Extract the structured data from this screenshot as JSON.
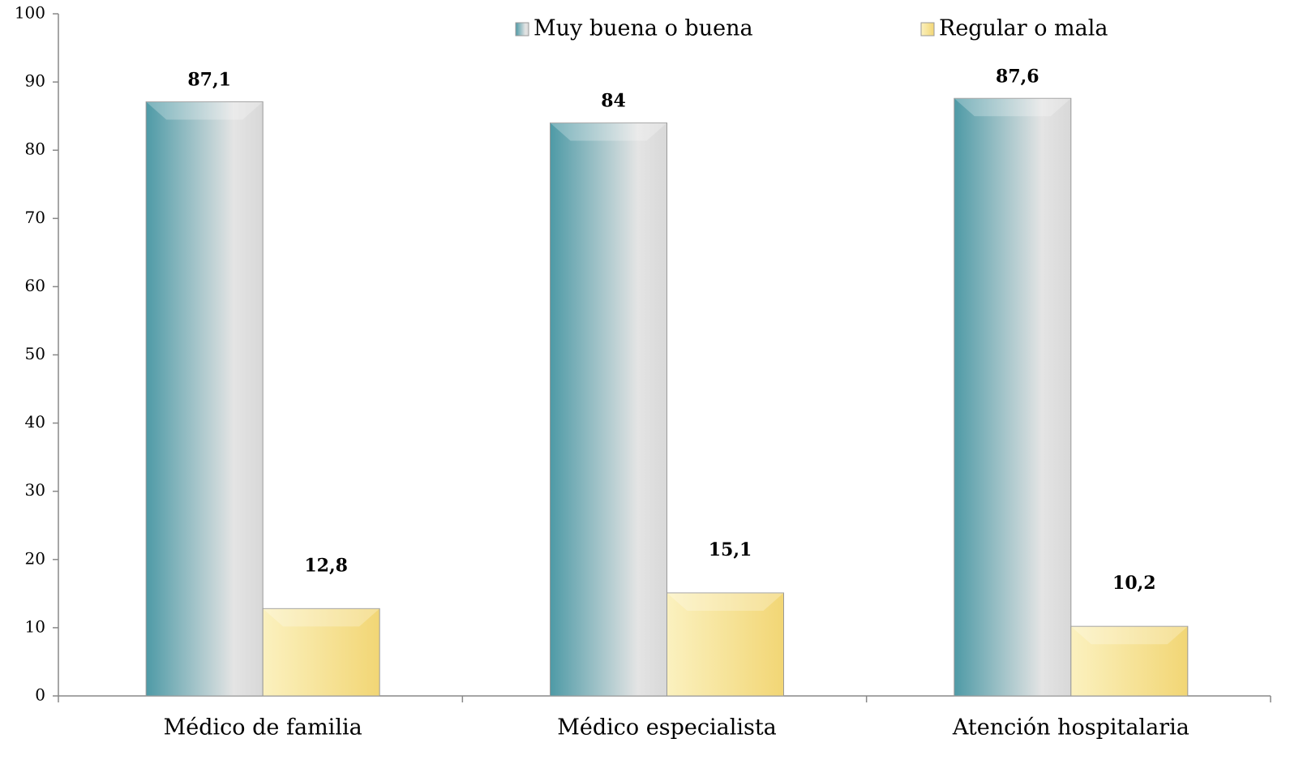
{
  "chart_data": {
    "type": "bar",
    "categories": [
      "Médico de familia",
      "Médico especialista",
      "Atención hospitalaria"
    ],
    "series": [
      {
        "name": "Muy buena o buena",
        "color": "#4e9aa6",
        "values": [
          87.1,
          84,
          87.6
        ],
        "value_labels": [
          "87,1",
          "84",
          "87,6"
        ]
      },
      {
        "name": "Regular o mala",
        "color": "#f2d675",
        "values": [
          12.8,
          15.1,
          10.2
        ],
        "value_labels": [
          "12,8",
          "15,1",
          "10,2"
        ]
      }
    ],
    "ylim": [
      0,
      100
    ],
    "yticks": [
      0,
      10,
      20,
      30,
      40,
      50,
      60,
      70,
      80,
      90,
      100
    ],
    "legend": "top"
  }
}
